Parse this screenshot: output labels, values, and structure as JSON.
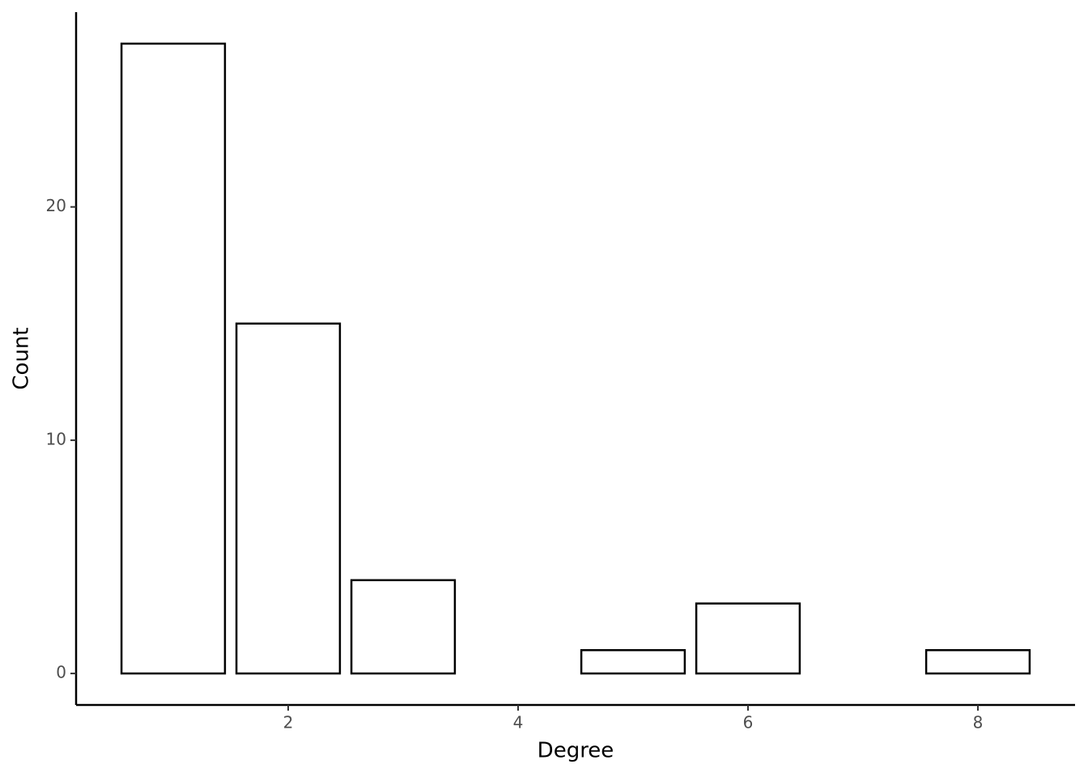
{
  "chart_data": {
    "type": "bar",
    "x_label": "Degree",
    "y_label": "Count",
    "x": [
      1,
      2,
      3,
      5,
      6,
      8
    ],
    "values": [
      27,
      15,
      4,
      1,
      3,
      1
    ],
    "bar_width": 0.9,
    "fill": "#ffffff",
    "stroke": "#000000",
    "xlim": [
      0.155,
      8.845
    ],
    "xticks": [
      2,
      4,
      6,
      8
    ],
    "ylim": [
      -1.35,
      28.35
    ],
    "yticks": [
      0,
      10,
      20
    ],
    "grid": false
  }
}
